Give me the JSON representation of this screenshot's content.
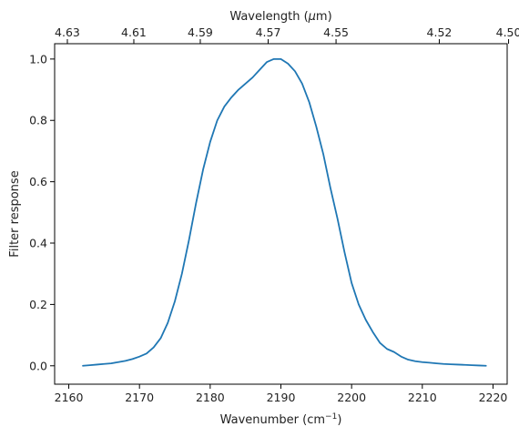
{
  "chart_data": {
    "type": "line",
    "xlabel": "Wavenumber (cm",
    "xlabel_superscript": "−1",
    "xlabel_suffix": ")",
    "ylabel": "Filter response",
    "top_axis_label": "Wavelength (",
    "top_axis_label_symbol": "μ",
    "top_axis_label_suffix": "m)",
    "xlim": [
      2158,
      2222
    ],
    "ylim": [
      -0.06,
      1.05
    ],
    "x_ticks": [
      2160,
      2170,
      2180,
      2190,
      2200,
      2210,
      2220
    ],
    "y_ticks": [
      0.0,
      0.2,
      0.4,
      0.6,
      0.8,
      1.0
    ],
    "y_tick_labels": [
      "0.0",
      "0.2",
      "0.4",
      "0.6",
      "0.8",
      "1.0"
    ],
    "top_ticks": [
      {
        "label": "4.63",
        "wavenumber": 2159.8
      },
      {
        "label": "4.61",
        "wavenumber": 2169.2
      },
      {
        "label": "4.59",
        "wavenumber": 2178.6
      },
      {
        "label": "4.57",
        "wavenumber": 2188.2
      },
      {
        "label": "4.55",
        "wavenumber": 2197.8
      },
      {
        "label": "4.52",
        "wavenumber": 2212.4
      },
      {
        "label": "4.50",
        "wavenumber": 2222.2
      }
    ],
    "grid": false,
    "line_color": "#1f77b4",
    "series": [
      {
        "x": [
          2162,
          2163,
          2164,
          2165,
          2166,
          2167,
          2168,
          2169,
          2170,
          2171,
          2172,
          2173,
          2174,
          2175,
          2176,
          2177,
          2178,
          2179,
          2180,
          2181,
          2182,
          2183,
          2184,
          2185,
          2186,
          2187,
          2188,
          2189,
          2190,
          2191,
          2192,
          2193,
          2194,
          2195,
          2196,
          2197,
          2198,
          2199,
          2200,
          2201,
          2202,
          2203,
          2204,
          2205,
          2206,
          2207,
          2208,
          2209,
          2210,
          2211,
          2212,
          2213,
          2214,
          2215,
          2216,
          2217,
          2218,
          2219
        ],
        "y": [
          0.0,
          0.002,
          0.004,
          0.006,
          0.008,
          0.012,
          0.016,
          0.022,
          0.03,
          0.04,
          0.06,
          0.09,
          0.14,
          0.21,
          0.3,
          0.41,
          0.53,
          0.64,
          0.73,
          0.8,
          0.845,
          0.875,
          0.9,
          0.92,
          0.94,
          0.965,
          0.99,
          1.0,
          1.0,
          0.985,
          0.96,
          0.92,
          0.86,
          0.78,
          0.69,
          0.58,
          0.48,
          0.37,
          0.27,
          0.2,
          0.15,
          0.11,
          0.075,
          0.055,
          0.045,
          0.03,
          0.02,
          0.015,
          0.012,
          0.01,
          0.008,
          0.006,
          0.005,
          0.004,
          0.003,
          0.002,
          0.001,
          0.0
        ]
      }
    ]
  }
}
